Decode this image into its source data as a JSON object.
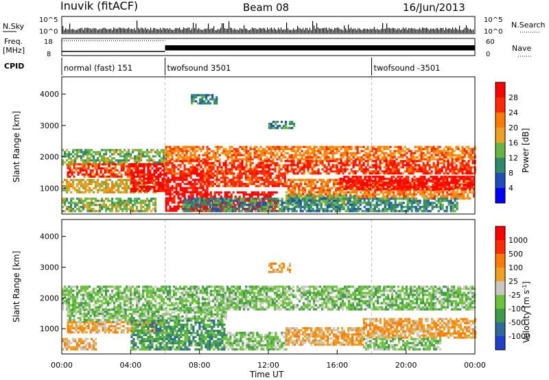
{
  "header": {
    "station": "Inuvik (fitACF)",
    "beam": "Beam 08",
    "date": "16/Jun/2013"
  },
  "nsky_panel": {
    "left_label": "N.Sky",
    "right_label": "N.Search",
    "left_ticks": [
      "10^5",
      "10^0"
    ],
    "right_ticks": [
      "10^5",
      "10^0"
    ]
  },
  "freq_panel": {
    "left_label_line1": "Freq.",
    "left_label_line2": "[MHz]",
    "right_label": "Nave",
    "left_ticks": [
      "18",
      "8"
    ],
    "right_ticks": [
      "60",
      "0"
    ],
    "freq_mhz_before_0600": 10.4,
    "freq_mhz_after_0600": 10.3,
    "nave_before_0600": 52,
    "nave_after_0600_min": 18,
    "nave_after_0600_max": 36
  },
  "cpid": {
    "label": "CPID",
    "segments": [
      {
        "name": "normal (fast) 151",
        "start_hr": 0,
        "end_hr": 6
      },
      {
        "name": "twofsound 3501",
        "start_hr": 6,
        "end_hr": 18
      },
      {
        "name": "twofsound -3501",
        "start_hr": 18,
        "end_hr": 24
      }
    ]
  },
  "power_colorbar": {
    "title": "Power [dB]",
    "ticks": [
      "4",
      "8",
      "12",
      "16",
      "20",
      "24",
      "28"
    ],
    "colors": [
      "#0000ff",
      "#1e4fb8",
      "#2f8a6a",
      "#66b542",
      "#f0a020",
      "#ff7a00",
      "#ff2a00",
      "#ff0000"
    ]
  },
  "velocity_colorbar": {
    "title": "Velocity [m s",
    "title_sup": "-1",
    "title_close": "]",
    "ticks": [
      "1000",
      "500",
      "100",
      "25",
      "-25",
      "-100",
      "-500",
      "-1000"
    ],
    "colors": [
      "#1f3fcc",
      "#2e6a9a",
      "#3f9a4a",
      "#6ac43a",
      "#c8c8c0",
      "#f0a020",
      "#ff7a00",
      "#ff2a00",
      "#ff0000"
    ]
  },
  "time_ticks": [
    "00:00",
    "04:00",
    "08:00",
    "12:00",
    "16:00",
    "20:00",
    "00:00"
  ],
  "xlabel": "Time UT",
  "chart_data": {
    "type": "heatmap",
    "xlabel": "Time UT",
    "ylabel": "Slant Range [km]",
    "xlim_hr": [
      0,
      24
    ],
    "ylim_km": [
      180,
      4550
    ],
    "yticks": [
      1000,
      2000,
      3000,
      4000
    ],
    "panels": [
      {
        "quantity": "Power [dB]",
        "regions": [
          {
            "t0": 0.0,
            "t1": 6.0,
            "r0": 1750,
            "r1": 2250,
            "level": "12"
          },
          {
            "t0": 0.3,
            "t1": 5.0,
            "r0": 1350,
            "r1": 1800,
            "level": "24"
          },
          {
            "t0": 0.0,
            "t1": 5.5,
            "r0": 850,
            "r1": 1300,
            "level": "16"
          },
          {
            "t0": 0.0,
            "t1": 5.5,
            "r0": 300,
            "r1": 700,
            "level": "12"
          },
          {
            "t0": 4.0,
            "t1": 6.0,
            "r0": 900,
            "r1": 1800,
            "level": "28"
          },
          {
            "t0": 6.0,
            "t1": 8.5,
            "r0": 300,
            "r1": 1500,
            "level": "28"
          },
          {
            "t0": 6.0,
            "t1": 24.0,
            "r0": 1900,
            "r1": 2350,
            "level": "20"
          },
          {
            "t0": 6.0,
            "t1": 24.0,
            "r0": 1500,
            "r1": 1900,
            "level": "24"
          },
          {
            "t0": 8.0,
            "t1": 12.5,
            "r0": 300,
            "r1": 900,
            "level": "28"
          },
          {
            "t0": 8.0,
            "t1": 13.0,
            "r0": 1100,
            "r1": 1500,
            "level": "24"
          },
          {
            "t0": 13.0,
            "t1": 24.0,
            "r0": 700,
            "r1": 1300,
            "level": "20"
          },
          {
            "t0": 16.0,
            "t1": 24.0,
            "r0": 1000,
            "r1": 1400,
            "level": "28"
          },
          {
            "t0": 13.0,
            "t1": 17.0,
            "r0": 500,
            "r1": 800,
            "level": "12"
          },
          {
            "t0": 7.0,
            "t1": 23.0,
            "r0": 300,
            "r1": 700,
            "level": "8"
          },
          {
            "t0": 7.5,
            "t1": 9.0,
            "r0": 3700,
            "r1": 4000,
            "level": "8"
          },
          {
            "t0": 12.0,
            "t1": 13.5,
            "r0": 2900,
            "r1": 3150,
            "level": "8"
          }
        ]
      },
      {
        "quantity": "Velocity [m s-1]",
        "regions": [
          {
            "t0": 0.0,
            "t1": 24.0,
            "r0": 1650,
            "r1": 2400,
            "level": "25"
          },
          {
            "t0": 0.3,
            "t1": 6.0,
            "r0": 1200,
            "r1": 1650,
            "level": "25"
          },
          {
            "t0": 0.3,
            "t1": 6.0,
            "r0": 850,
            "r1": 1250,
            "level": "-100"
          },
          {
            "t0": 0.0,
            "t1": 2.0,
            "r0": 300,
            "r1": 700,
            "level": "-100"
          },
          {
            "t0": 4.0,
            "t1": 9.5,
            "r0": 300,
            "r1": 1300,
            "level": "100"
          },
          {
            "t0": 6.0,
            "t1": 9.5,
            "r0": 1300,
            "r1": 1700,
            "level": "25"
          },
          {
            "t0": 9.5,
            "t1": 13.0,
            "r0": 300,
            "r1": 900,
            "level": "25"
          },
          {
            "t0": 13.0,
            "t1": 17.5,
            "r0": 500,
            "r1": 1050,
            "level": "-100"
          },
          {
            "t0": 17.5,
            "t1": 24.0,
            "r0": 700,
            "r1": 1350,
            "level": "-100"
          },
          {
            "t0": 17.5,
            "t1": 22.0,
            "r0": 300,
            "r1": 700,
            "level": "-25"
          },
          {
            "t0": 12.0,
            "t1": 13.3,
            "r0": 2850,
            "r1": 3150,
            "level": "-100"
          }
        ]
      }
    ]
  }
}
